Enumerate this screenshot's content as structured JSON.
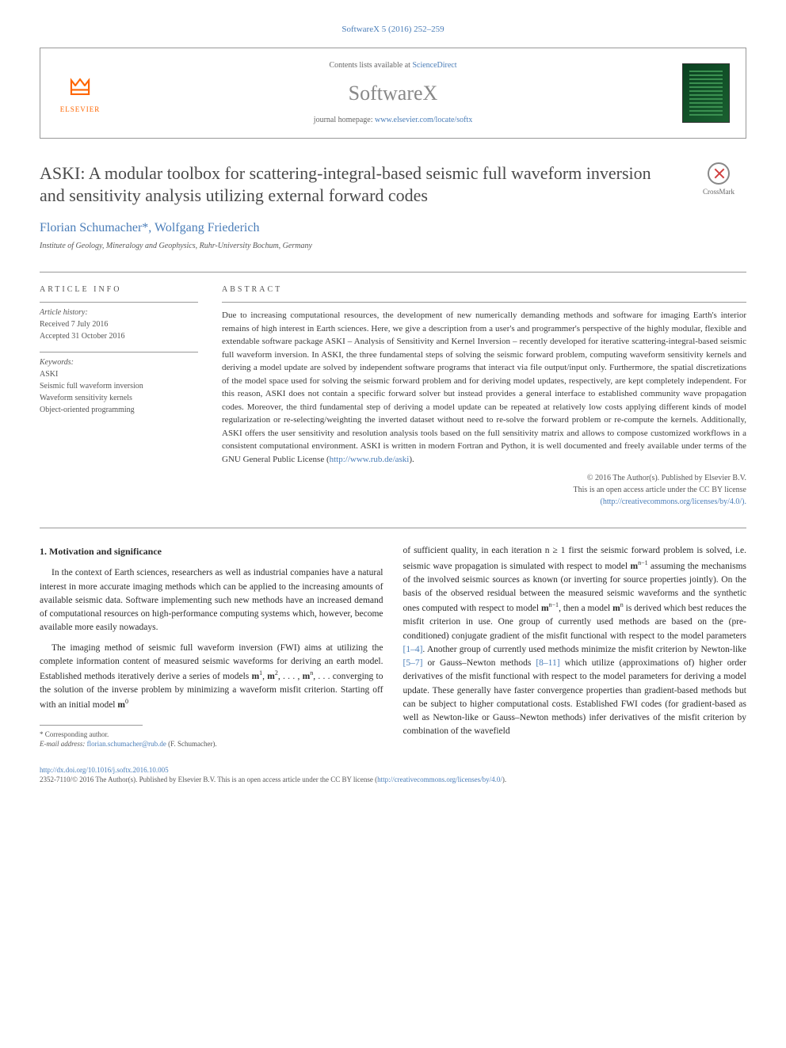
{
  "journal_ref": "SoftwareX 5 (2016) 252–259",
  "header": {
    "contents_prefix": "Contents lists available at ",
    "contents_link": "ScienceDirect",
    "journal_name": "SoftwareX",
    "homepage_prefix": "journal homepage: ",
    "homepage_url": "www.elsevier.com/locate/softx",
    "publisher": "ELSEVIER"
  },
  "article": {
    "title": "ASKI: A modular toolbox for scattering-integral-based seismic full waveform inversion and sensitivity analysis utilizing external forward codes",
    "crossmark_label": "CrossMark",
    "authors": "Florian Schumacher*, Wolfgang Friederich",
    "affiliation": "Institute of Geology, Mineralogy and Geophysics, Ruhr-University Bochum, Germany"
  },
  "info": {
    "heading": "ARTICLE INFO",
    "history_label": "Article history:",
    "received": "Received 7 July 2016",
    "accepted": "Accepted 31 October 2016",
    "keywords_label": "Keywords:",
    "keywords": [
      "ASKI",
      "Seismic full waveform inversion",
      "Waveform sensitivity kernels",
      "Object-oriented programming"
    ]
  },
  "abstract": {
    "heading": "ABSTRACT",
    "text": "Due to increasing computational resources, the development of new numerically demanding methods and software for imaging Earth's interior remains of high interest in Earth sciences. Here, we give a description from a user's and programmer's perspective of the highly modular, flexible and extendable software package ASKI – Analysis of Sensitivity and Kernel Inversion – recently developed for iterative scattering-integral-based seismic full waveform inversion. In ASKI, the three fundamental steps of solving the seismic forward problem, computing waveform sensitivity kernels and deriving a model update are solved by independent software programs that interact via file output/input only. Furthermore, the spatial discretizations of the model space used for solving the seismic forward problem and for deriving model updates, respectively, are kept completely independent. For this reason, ASKI does not contain a specific forward solver but instead provides a general interface to established community wave propagation codes. Moreover, the third fundamental step of deriving a model update can be repeated at relatively low costs applying different kinds of model regularization or re-selecting/weighting the inverted dataset without need to re-solve the forward problem or re-compute the kernels. Additionally, ASKI offers the user sensitivity and resolution analysis tools based on the full sensitivity matrix and allows to compose customized workflows in a consistent computational environment. ASKI is written in modern Fortran and Python, it is well documented and freely available under terms of the GNU General Public License (",
    "link": "http://www.rub.de/aski",
    "text_end": ").",
    "copyright_line1": "© 2016 The Author(s). Published by Elsevier B.V.",
    "copyright_line2": "This is an open access article under the CC BY license",
    "copyright_link": "(http://creativecommons.org/licenses/by/4.0/)."
  },
  "body": {
    "section_number": "1.",
    "section_title": "Motivation and significance",
    "left_p1": "In the context of Earth sciences, researchers as well as industrial companies have a natural interest in more accurate imaging methods which can be applied to the increasing amounts of available seismic data. Software implementing such new methods have an increased demand of computational resources on high-performance computing systems which, however, become available more easily nowadays.",
    "left_p2_a": "The imaging method of seismic full waveform inversion (FWI) aims at utilizing the complete information content of measured seismic waveforms for deriving an earth model. Established methods iteratively derive a series of models ",
    "left_p2_b": " converging to the solution of the inverse problem by minimizing a waveform misfit criterion. Starting off with an initial model ",
    "right_p1_a": "of sufficient quality, in each iteration n ≥ 1 first the seismic forward problem is solved, i.e. seismic wave propagation is simulated with respect to model ",
    "right_p1_b": " assuming the mechanisms of the involved seismic sources as known (or inverting for source properties jointly). On the basis of the observed residual between the measured seismic waveforms and the synthetic ones computed with respect to model ",
    "right_p1_c": ", then a model ",
    "right_p1_d": " is derived which best reduces the misfit criterion in use. One group of currently used methods are based on the (pre-conditioned) conjugate gradient of the misfit functional with respect to the model parameters ",
    "right_p1_e": ". Another group of currently used methods minimize the misfit criterion by Newton-like ",
    "right_p1_f": " or Gauss–Newton methods ",
    "right_p1_g": " which utilize (approximations of) higher order derivatives of the misfit functional with respect to the model parameters for deriving a model update. These generally have faster convergence properties than gradient-based methods but can be subject to higher computational costs. Established FWI codes (for gradient-based as well as Newton-like or Gauss–Newton methods) infer derivatives of the misfit criterion by combination of the wavefield",
    "ref1": "[1–4]",
    "ref2": "[5–7]",
    "ref3": "[8–11]"
  },
  "footnote": {
    "corr": "* Corresponding author.",
    "email_label": "E-mail address: ",
    "email": "florian.schumacher@rub.de",
    "email_suffix": " (F. Schumacher)."
  },
  "footer": {
    "doi": "http://dx.doi.org/10.1016/j.softx.2016.10.005",
    "issn_line": "2352-7110/© 2016 The Author(s). Published by Elsevier B.V. This is an open access article under the CC BY license (",
    "cc_link": "http://creativecommons.org/licenses/by/4.0/",
    "issn_end": ")."
  },
  "colors": {
    "link": "#4a7db8",
    "text": "#2a2a2a",
    "muted": "#555555",
    "border": "#999999",
    "elsevier": "#ff6600"
  }
}
